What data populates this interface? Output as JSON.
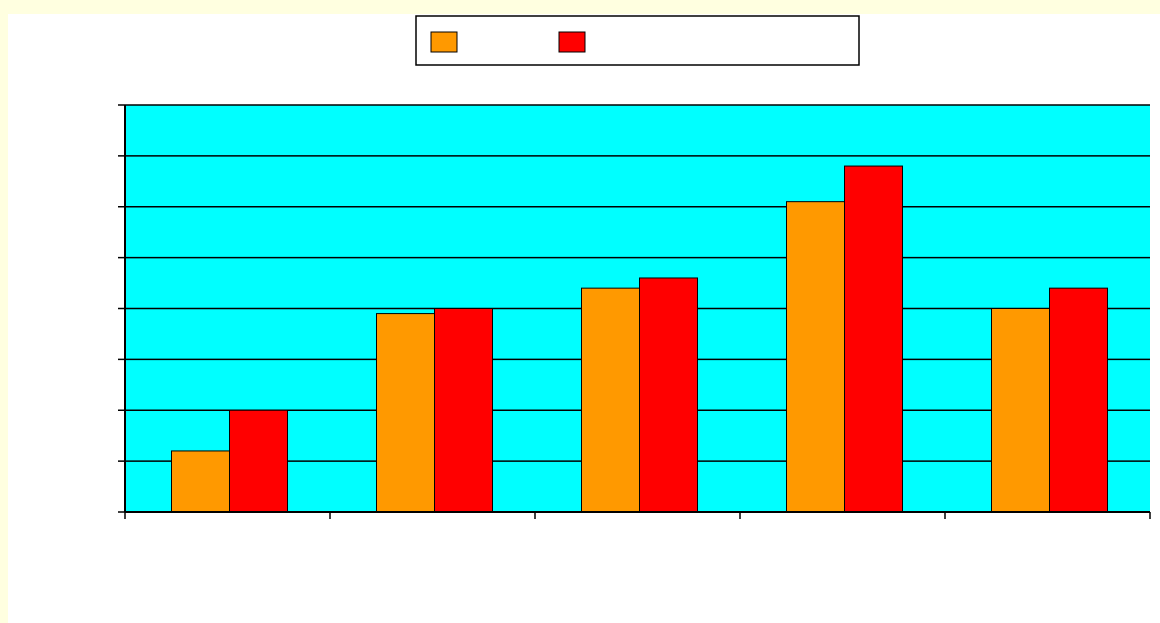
{
  "colors": {
    "page_background": "#ffffe0",
    "chart_background": "#ffffff",
    "plot_background": "#00ffff",
    "gridline": "#000000",
    "axis": "#000000"
  },
  "chart_data": {
    "type": "bar",
    "title": "",
    "xlabel": "",
    "ylabel": "",
    "categories": [
      "",
      "",
      "",
      "",
      ""
    ],
    "ylim": [
      0,
      8
    ],
    "y_tick_count": 8,
    "grid": true,
    "legend_position": "top-center",
    "series": [
      {
        "name": "",
        "color": "#ff9900",
        "values": [
          1.2,
          3.9,
          4.4,
          6.1,
          4.0
        ]
      },
      {
        "name": "",
        "color": "#ff0000",
        "values": [
          2.0,
          4.0,
          4.6,
          6.8,
          4.4
        ]
      }
    ]
  }
}
